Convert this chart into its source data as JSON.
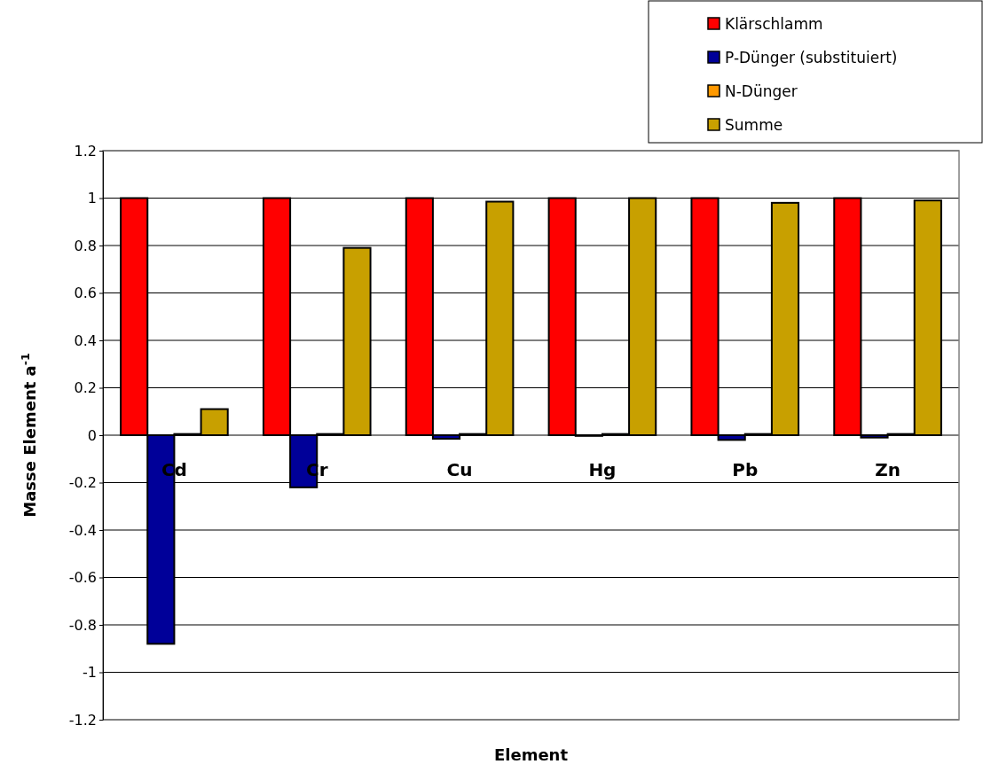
{
  "chart_data": {
    "type": "bar",
    "xlabel": "Element",
    "ylabel": "Masse Element a$^{-1}$",
    "categories": [
      "Cd",
      "Cr",
      "Cu",
      "Hg",
      "Pb",
      "Zn"
    ],
    "series": [
      {
        "name": "Klärschlamm",
        "color": "#ff0000",
        "values": [
          1,
          1,
          1,
          1,
          1,
          1
        ]
      },
      {
        "name": "P-Dünger (substituiert)",
        "color": "#000099",
        "values": [
          -0.88,
          -0.22,
          -0.015,
          -0.003,
          -0.02,
          -0.01
        ]
      },
      {
        "name": "N-Dünger",
        "color": "#ff9900",
        "values": [
          0.005,
          0.005,
          0.005,
          0.005,
          0.005,
          0.005
        ]
      },
      {
        "name": "Summe",
        "color": "#c8a000",
        "values": [
          0.11,
          0.79,
          0.985,
          1.0,
          0.98,
          0.99
        ]
      }
    ],
    "ylim": [
      -1.2,
      1.2
    ],
    "yticks": [
      -1.2,
      -1,
      -0.8,
      -0.6,
      -0.4,
      -0.2,
      0,
      0.2,
      0.4,
      0.6,
      0.8,
      1,
      1.2
    ],
    "grid": "y",
    "legend": "top right"
  }
}
